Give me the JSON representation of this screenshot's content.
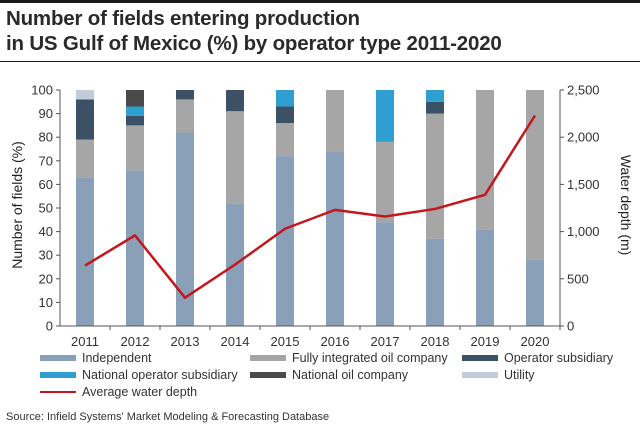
{
  "title_lines": [
    "Number of fields entering production",
    "in US Gulf of Mexico (%) by operator type 2011-2020"
  ],
  "source": "Source: Infield Systems' Market Modeling & Forecasting Database",
  "chart_data": {
    "type": "bar",
    "stacked": true,
    "categories": [
      "2011",
      "2012",
      "2013",
      "2014",
      "2015",
      "2016",
      "2017",
      "2018",
      "2019",
      "2020"
    ],
    "ylabel": "Number of fields (%)",
    "ylim": [
      0,
      100
    ],
    "yticks": [
      0,
      10,
      20,
      30,
      40,
      50,
      60,
      70,
      80,
      90,
      100
    ],
    "y2label": "Water depth (m)",
    "y2lim": [
      0,
      2500
    ],
    "y2ticks": [
      0,
      500,
      1000,
      1500,
      2000,
      2500
    ],
    "y2ticklabels": [
      "0",
      "500",
      "1,000",
      "1,500",
      "2,000",
      "2,500"
    ],
    "grid": false,
    "legend_position": "bottom",
    "series": [
      {
        "name": "Independent",
        "color": "#8a9fb8",
        "values": [
          63,
          66,
          82,
          52,
          72,
          74,
          44,
          37,
          41,
          28
        ]
      },
      {
        "name": "Fully integrated oil company",
        "color": "#a6a6a6",
        "values": [
          16,
          19,
          14,
          39,
          14,
          26,
          34,
          53,
          59,
          72
        ]
      },
      {
        "name": "Operator subsidiary",
        "color": "#3d5166",
        "values": [
          17,
          4,
          4,
          9,
          7,
          0,
          0,
          5,
          0,
          0
        ]
      },
      {
        "name": "National operator subsidiary",
        "color": "#2e9fd0",
        "values": [
          0,
          4,
          0,
          0,
          7,
          0,
          22,
          5,
          0,
          0
        ]
      },
      {
        "name": "National oil company",
        "color": "#4a4a4a",
        "values": [
          0,
          7,
          0,
          0,
          0,
          0,
          0,
          0,
          0,
          0
        ]
      },
      {
        "name": "Utility",
        "color": "#c0ccd8",
        "values": [
          4,
          0,
          0,
          0,
          0,
          0,
          0,
          0,
          0,
          0
        ]
      }
    ],
    "line": {
      "name": "Average water depth",
      "color": "#c4161c",
      "axis": "right",
      "values": [
        640,
        960,
        300,
        650,
        1030,
        1230,
        1160,
        1240,
        1390,
        2230
      ]
    }
  }
}
